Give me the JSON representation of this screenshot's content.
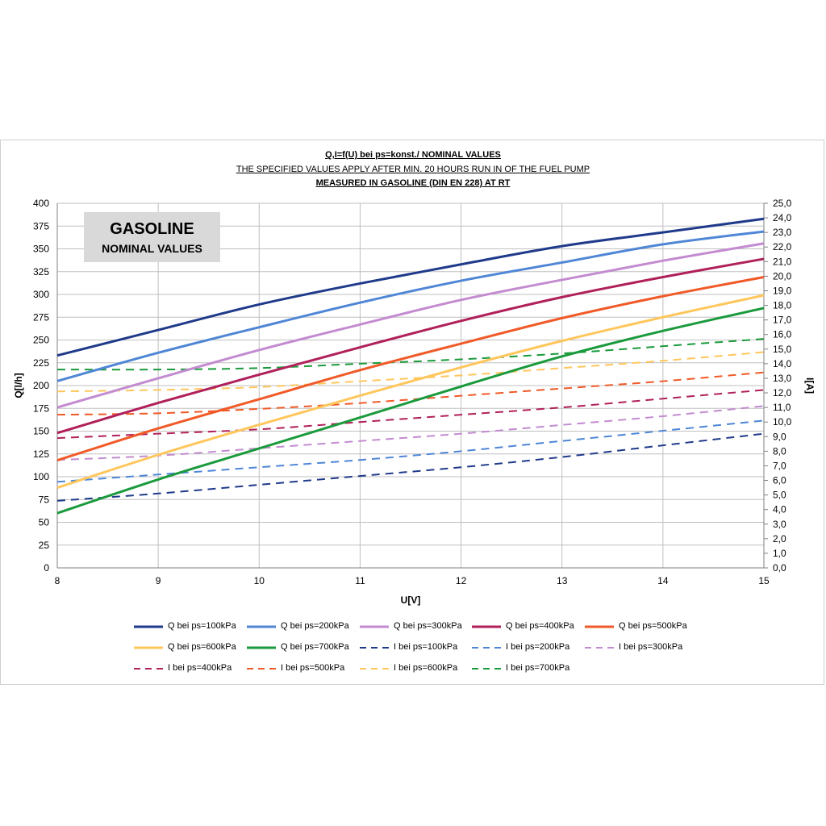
{
  "titles": {
    "line1": "Q,I=f(U) bei ps=konst./ NOMINAL VALUES",
    "line2": "THE SPECIFIED VALUES APPLY AFTER MIN. 20 HOURS RUN IN OF THE FUEL PUMP",
    "line3": "MEASURED IN GASOLINE (DIN EN 228) AT RT"
  },
  "box": {
    "title": "GASOLINE",
    "subtitle": "NOMINAL VALUES"
  },
  "chart_data": {
    "type": "line",
    "xlabel": "U[V]",
    "ylabel": "Q[l/h]",
    "y2label": "I[A]",
    "xlim": [
      8,
      15
    ],
    "ylim": [
      0,
      400
    ],
    "y2lim": [
      0,
      25
    ],
    "x_ticks": [
      "8",
      "9",
      "10",
      "11",
      "12",
      "13",
      "14",
      "15"
    ],
    "y_ticks": [
      "0",
      "25",
      "50",
      "75",
      "100",
      "125",
      "150",
      "175",
      "200",
      "225",
      "250",
      "275",
      "300",
      "325",
      "350",
      "375",
      "400"
    ],
    "y2_ticks": [
      "0,0",
      "1,0",
      "2,0",
      "3,0",
      "4,0",
      "5,0",
      "6,0",
      "7,0",
      "8,0",
      "9,0",
      "10,0",
      "11,0",
      "12,0",
      "13,0",
      "14,0",
      "15,0",
      "16,0",
      "17,0",
      "18,0",
      "19,0",
      "20,0",
      "21,0",
      "22,0",
      "23,0",
      "24,0",
      "25,0"
    ],
    "grid": true,
    "legend_position": "bottom",
    "x": [
      8,
      9,
      10,
      11,
      12,
      13,
      14,
      15
    ],
    "series": [
      {
        "name": "Q  bei ps=100kPa",
        "axis": "left",
        "style": "solid",
        "color": "#1f3a8a",
        "values": [
          233,
          261,
          289,
          312,
          333,
          353,
          368,
          383
        ]
      },
      {
        "name": "Q  bei ps=200kPa",
        "axis": "left",
        "style": "solid",
        "color": "#4f86d6",
        "values": [
          205,
          236,
          264,
          291,
          315,
          335,
          355,
          369
        ]
      },
      {
        "name": "Q  bei ps=300kPa",
        "axis": "left",
        "style": "solid",
        "color": "#c38bd0",
        "values": [
          176,
          208,
          239,
          267,
          294,
          316,
          337,
          356
        ]
      },
      {
        "name": "Q  bei ps=400kPa",
        "axis": "left",
        "style": "solid",
        "color": "#b0205a",
        "values": [
          148,
          181,
          212,
          242,
          271,
          297,
          319,
          339
        ]
      },
      {
        "name": "Q  bei ps=500kPa",
        "axis": "left",
        "style": "solid",
        "color": "#f05a28",
        "values": [
          118,
          153,
          185,
          217,
          246,
          274,
          298,
          319
        ]
      },
      {
        "name": "Q  bei ps=600kPa",
        "axis": "left",
        "style": "solid",
        "color": "#ffc65c",
        "values": [
          88,
          124,
          157,
          189,
          220,
          249,
          275,
          299
        ]
      },
      {
        "name": "Q  bei ps=700kPa",
        "axis": "left",
        "style": "solid",
        "color": "#1a9a3c",
        "values": [
          60,
          97,
          131,
          165,
          199,
          232,
          260,
          285
        ]
      },
      {
        "name": "I  bei ps=100kPa",
        "axis": "right",
        "style": "dashed",
        "color": "#1f3a8a",
        "values": [
          4.6,
          5.1,
          5.7,
          6.3,
          6.9,
          7.6,
          8.4,
          9.2
        ]
      },
      {
        "name": "I  bei ps=200kPa",
        "axis": "right",
        "style": "dashed",
        "color": "#4f86d6",
        "values": [
          5.9,
          6.4,
          6.9,
          7.4,
          8.0,
          8.7,
          9.4,
          10.1
        ]
      },
      {
        "name": "I  bei ps=300kPa",
        "axis": "right",
        "style": "dashed",
        "color": "#c38bd0",
        "values": [
          7.4,
          7.7,
          8.2,
          8.7,
          9.2,
          9.8,
          10.4,
          11.1
        ]
      },
      {
        "name": "I  bei ps=400kPa",
        "axis": "right",
        "style": "dashed",
        "color": "#b0205a",
        "values": [
          8.9,
          9.2,
          9.5,
          10.0,
          10.5,
          11.0,
          11.6,
          12.2
        ]
      },
      {
        "name": "I  bei ps=500kPa",
        "axis": "right",
        "style": "dashed",
        "color": "#f05a28",
        "values": [
          10.5,
          10.6,
          10.9,
          11.3,
          11.8,
          12.3,
          12.8,
          13.4
        ]
      },
      {
        "name": "I  bei ps=600kPa",
        "axis": "right",
        "style": "dashed",
        "color": "#ffc65c",
        "values": [
          12.1,
          12.2,
          12.4,
          12.8,
          13.2,
          13.7,
          14.2,
          14.8
        ]
      },
      {
        "name": "I  bei ps=700kPa",
        "axis": "right",
        "style": "dashed",
        "color": "#1a9a3c",
        "values": [
          13.6,
          13.6,
          13.7,
          14.0,
          14.3,
          14.7,
          15.2,
          15.7
        ]
      }
    ]
  }
}
